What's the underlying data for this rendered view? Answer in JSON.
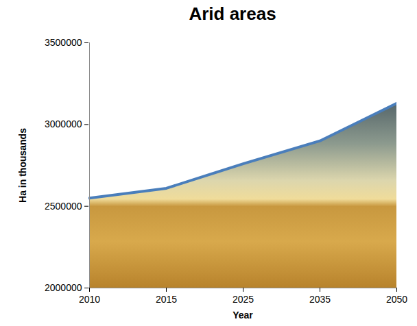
{
  "chart_data": {
    "type": "area",
    "title": "Arid areas",
    "x_label": "Year",
    "y_label": "Ha in thousands",
    "categories": [
      "2010",
      "2015",
      "2025",
      "2035",
      "2050"
    ],
    "values": [
      2550000,
      2610000,
      2760000,
      2900000,
      3130000
    ],
    "color": "#4a7ebb",
    "ylim": [
      2000000,
      3500000
    ],
    "yticks": [
      2000000,
      2500000,
      3000000,
      3500000
    ],
    "grid": false
  }
}
